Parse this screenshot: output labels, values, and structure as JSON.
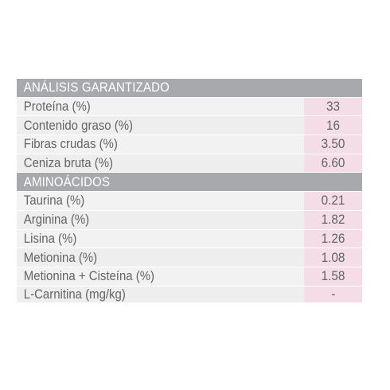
{
  "section1": {
    "title": "ANÁLISIS GARANTIZADO",
    "rows": [
      {
        "label": "Proteína (%)",
        "value": "33"
      },
      {
        "label": "Contenido graso (%)",
        "value": "16"
      },
      {
        "label": "Fibras crudas (%)",
        "value": "3.50"
      },
      {
        "label": "Ceniza bruta (%)",
        "value": "6.60"
      }
    ]
  },
  "section2": {
    "title": "AMINOÁCIDOS",
    "rows": [
      {
        "label": "Taurina (%)",
        "value": "0.21"
      },
      {
        "label": "Arginina (%)",
        "value": "1.82"
      },
      {
        "label": "Lisina (%)",
        "value": "1.26"
      },
      {
        "label": "Metionina (%)",
        "value": "1.08"
      },
      {
        "label": "Metionina + Cisteína (%)",
        "value": "1.58"
      },
      {
        "label": "L-Carnitina (mg/kg)",
        "value": "-"
      }
    ]
  },
  "colors": {
    "header_bg": "#a7a9ac",
    "row_bg": "#f2f2f2",
    "value_bg": "#f4dde6",
    "text": "#636466"
  }
}
